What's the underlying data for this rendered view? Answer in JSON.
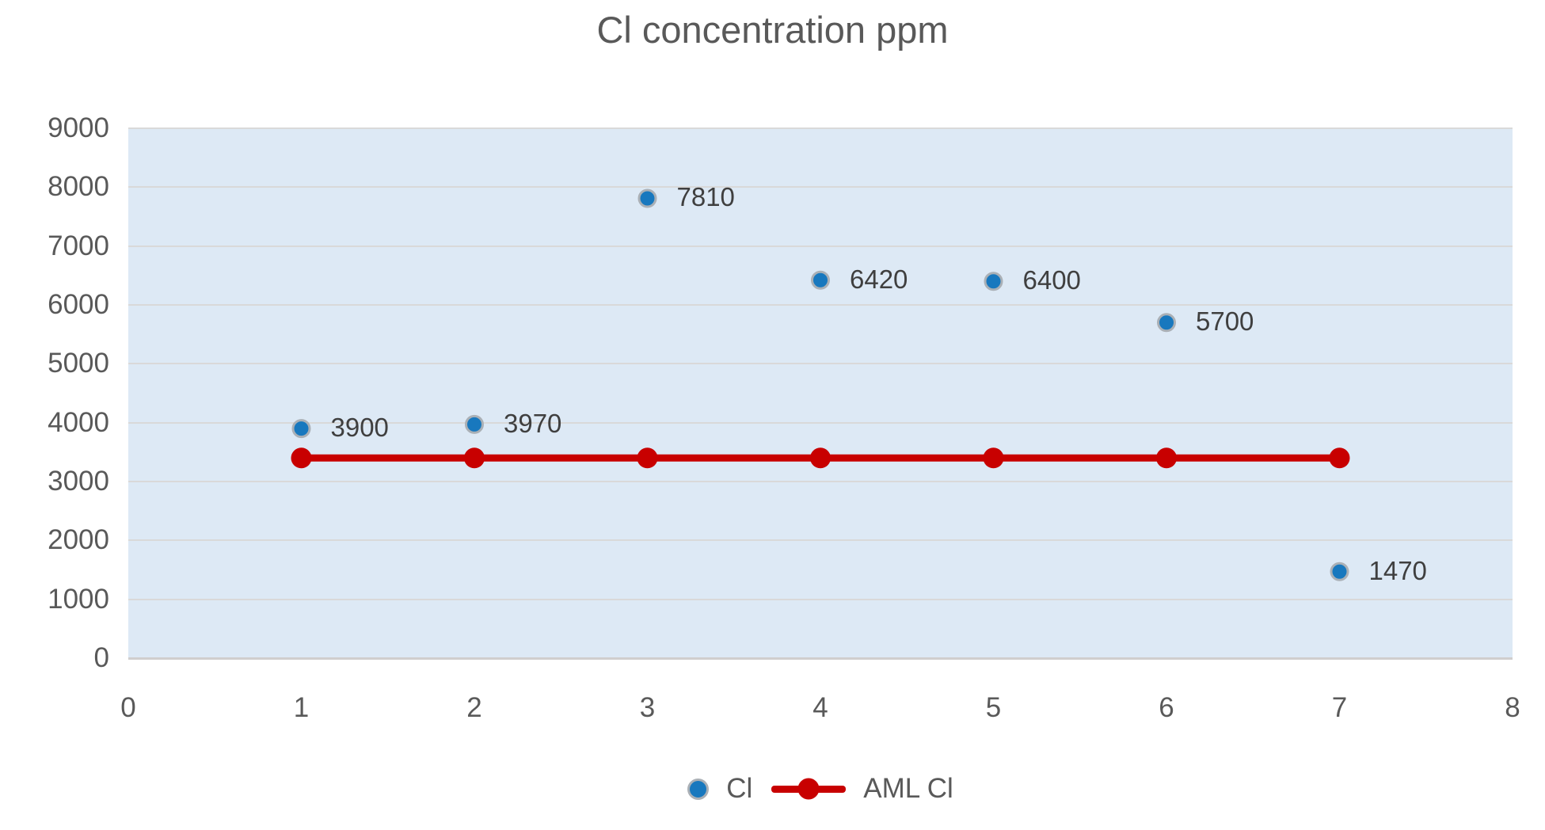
{
  "title": "Cl concentration ppm",
  "colors": {
    "plot_background": "#dde9f5",
    "gridline": "#d9d9d9",
    "axis_line": "#d0cece",
    "cl_marker_fill": "#1878be",
    "cl_marker_ring": "#aab0b6",
    "aml_line": "#c80000",
    "title_text": "#595959",
    "axis_text": "#595959",
    "data_label_text": "#3f3f3f"
  },
  "chart_data": {
    "type": "scatter",
    "title": "Cl concentration ppm",
    "x_axis": {
      "min": 0,
      "max": 8,
      "step": 1,
      "ticks": [
        "0",
        "1",
        "2",
        "3",
        "4",
        "5",
        "6",
        "7",
        "8"
      ]
    },
    "y_axis": {
      "min": 0,
      "max": 9000,
      "step": 1000,
      "ticks": [
        "0",
        "1000",
        "2000",
        "3000",
        "4000",
        "5000",
        "6000",
        "7000",
        "8000",
        "9000"
      ]
    },
    "grid": "horizontal-only",
    "legend_position": "bottom-center",
    "series": [
      {
        "name": "Cl",
        "type": "scatter",
        "color": "#1878be",
        "x": [
          1,
          2,
          3,
          4,
          5,
          6,
          7
        ],
        "y": [
          3900,
          3970,
          7810,
          6420,
          6400,
          5700,
          1470
        ],
        "data_labels": [
          "3900",
          "3970",
          "7810",
          "6420",
          "6400",
          "5700",
          "1470"
        ]
      },
      {
        "name": "AML Cl",
        "type": "line",
        "color": "#c80000",
        "x": [
          1,
          2,
          3,
          4,
          5,
          6,
          7
        ],
        "y": [
          3400,
          3400,
          3400,
          3400,
          3400,
          3400,
          3400
        ],
        "data_labels": []
      }
    ]
  },
  "legend": {
    "items": [
      {
        "label": "Cl",
        "marker": "blue-dot"
      },
      {
        "label": "AML Cl",
        "marker": "red-line-dot"
      }
    ]
  }
}
